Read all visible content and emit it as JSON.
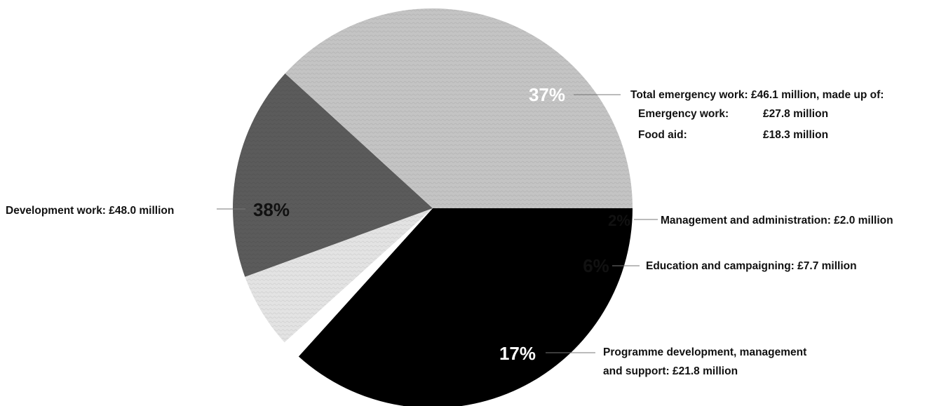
{
  "chart_data": {
    "type": "pie",
    "slices": [
      {
        "key": "emergency",
        "percent_label": "37%",
        "value": 46.1,
        "color": "#000000",
        "pct_color": "#ffffff",
        "label": "Total emergency work: £46.1 million, made up of:",
        "sub_items": [
          {
            "name": "Emergency work:",
            "amount": "£27.8 million"
          },
          {
            "name": "Food aid:",
            "amount": "£18.3 million"
          }
        ]
      },
      {
        "key": "management",
        "percent_label": "2%",
        "value": 2.0,
        "color": "#ffffff",
        "pct_color": "#111111",
        "label": "Management and administration: £2.0 million"
      },
      {
        "key": "education",
        "percent_label": "6%",
        "value": 7.7,
        "color": "#e3e3e3",
        "pct_color": "#111111",
        "label": "Education and campaigning: £7.7 million"
      },
      {
        "key": "programme",
        "percent_label": "17%",
        "value": 21.8,
        "color": "#5b5b5b",
        "pct_color": "#ffffff",
        "label": "Programme development, management and support: £21.8 million",
        "label_lines": [
          "Programme development, management",
          "and support: £21.8 million"
        ]
      },
      {
        "key": "development",
        "percent_label": "38%",
        "value": 48.0,
        "color": "#c4c4c4",
        "pct_color": "#111111",
        "label": "Development work: £48.0 million"
      }
    ],
    "start": "3 o'clock",
    "direction": "clockwise",
    "legend": "none"
  }
}
